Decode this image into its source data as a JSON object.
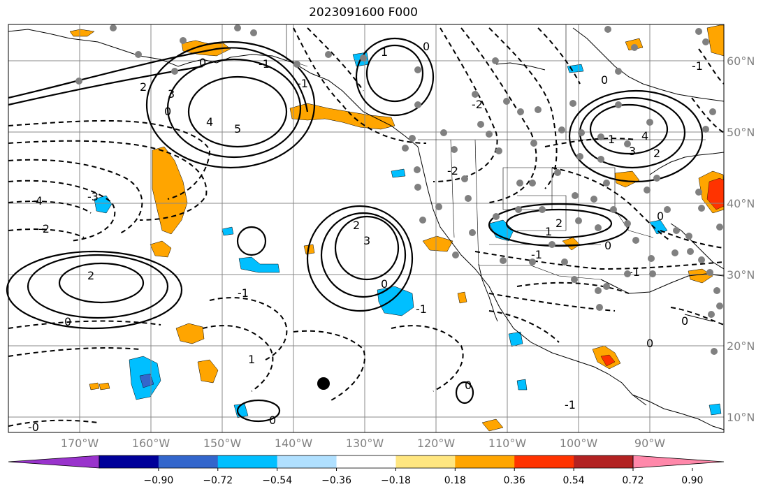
{
  "title": "2023091600 F000",
  "longitude_labels": [
    "170°W",
    "160°W",
    "150°W",
    "140°W",
    "130°W",
    "120°W",
    "110°W",
    "100°W",
    "90°W"
  ],
  "latitude_labels": [
    "60°N",
    "50°N",
    "40°N",
    "30°N",
    "20°N",
    "10°N"
  ],
  "colorbar": {
    "colors": [
      "#9933cc",
      "#000099",
      "#3366cc",
      "#00bfff",
      "#b0e0ff",
      "#ffffff",
      "#ffe680",
      "#ffa500",
      "#ff3300",
      "#b22222",
      "#ff88aa"
    ],
    "labels": [
      "−0.90",
      "−0.72",
      "−0.54",
      "−0.36",
      "−0.18",
      "0.18",
      "0.36",
      "0.54",
      "0.72",
      "0.90"
    ]
  },
  "contour_labels": [
    "2",
    "3",
    "4",
    "5",
    "-1",
    "0",
    "-2",
    "-3",
    "-4",
    "2",
    "3",
    "0",
    "-1",
    "2",
    "0",
    "1",
    "-2",
    "0",
    "4",
    "3",
    "2",
    "1",
    "0",
    "-1",
    "1",
    "2",
    "0",
    "-1",
    "0",
    "0",
    "-0",
    "-1",
    "1",
    "-2",
    "0",
    "-1",
    "0",
    "0",
    "0",
    "-1",
    "-1"
  ],
  "marker": "storm-center"
}
